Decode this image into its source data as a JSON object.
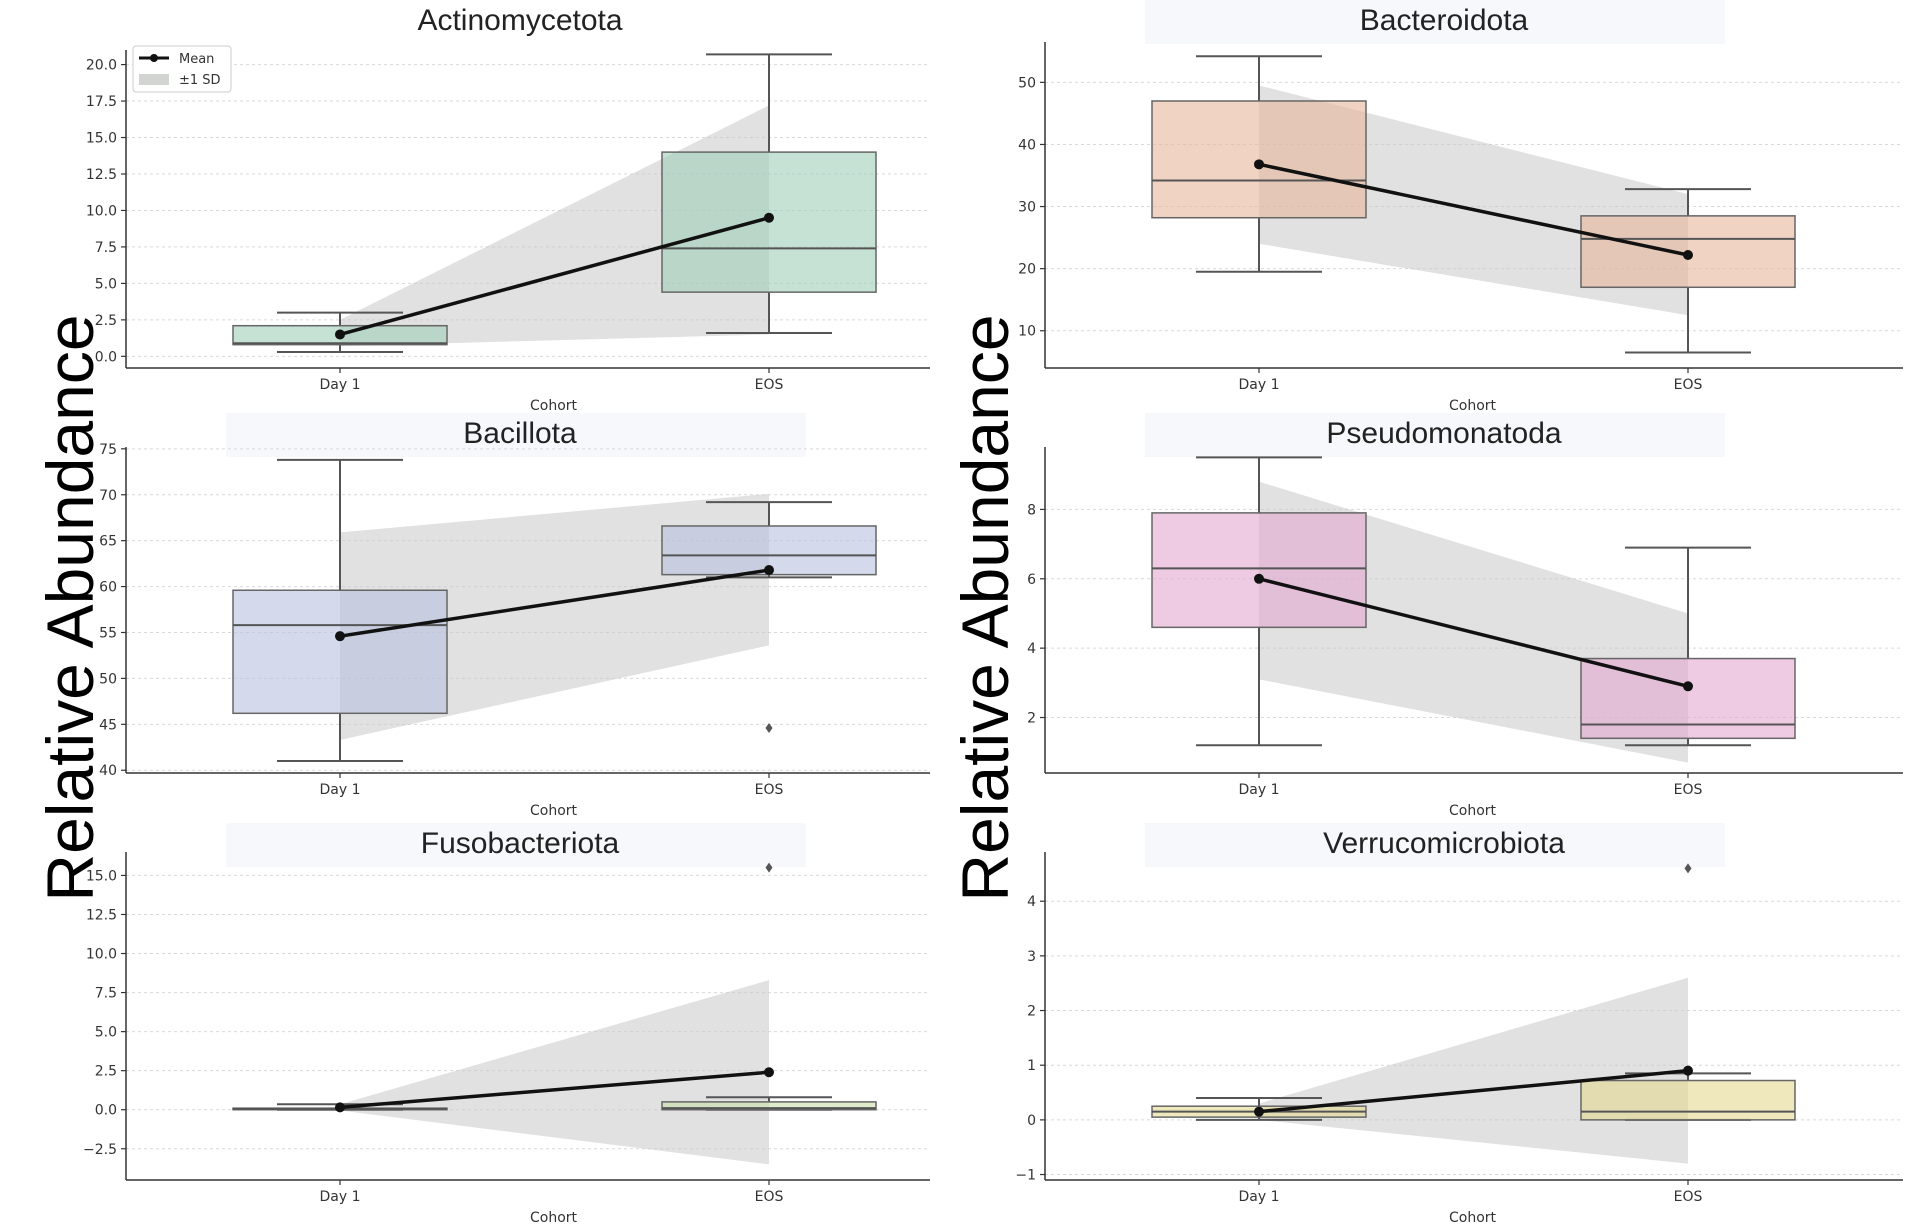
{
  "ylabel": "Relative Abundance",
  "legend": {
    "mean_label": "Mean",
    "sd_label": "±1 SD"
  },
  "chart_data": [
    {
      "type": "box",
      "title": "Actinomycetota",
      "categories": [
        "Day 1",
        "EOS"
      ],
      "xlabel": "Cohort",
      "ylim": [
        -0.8,
        21.0
      ],
      "yticks": [
        0.0,
        2.5,
        5.0,
        7.5,
        10.0,
        12.5,
        15.0,
        17.5,
        20.0
      ],
      "ytick_labels": [
        "0.0",
        "2.5",
        "5.0",
        "7.5",
        "10.0",
        "12.5",
        "15.0",
        "17.5",
        "20.0"
      ],
      "boxes": [
        {
          "whislo": 0.3,
          "q1": 0.8,
          "med": 0.9,
          "q3": 2.1,
          "whishi": 3.0,
          "fliers": []
        },
        {
          "whislo": 1.6,
          "q1": 4.4,
          "med": 7.4,
          "q3": 14.0,
          "whishi": 20.7,
          "fliers": []
        }
      ],
      "mean": [
        1.5,
        9.5
      ],
      "sd_band": {
        "lower": [
          0.7,
          1.5
        ],
        "upper": [
          2.5,
          17.2
        ]
      },
      "box_color": "#9fcfb9"
    },
    {
      "type": "box",
      "title": "Bacteroidota",
      "categories": [
        "Day 1",
        "EOS"
      ],
      "xlabel": "Cohort",
      "ylim": [
        4.0,
        56.5
      ],
      "yticks": [
        10,
        20,
        30,
        40,
        50
      ],
      "ytick_labels": [
        "10",
        "20",
        "30",
        "40",
        "50"
      ],
      "boxes": [
        {
          "whislo": 19.5,
          "q1": 28.2,
          "med": 34.2,
          "q3": 47.0,
          "whishi": 54.2,
          "fliers": []
        },
        {
          "whislo": 6.5,
          "q1": 17.0,
          "med": 24.8,
          "q3": 28.5,
          "whishi": 32.8,
          "fliers": []
        }
      ],
      "mean": [
        36.8,
        22.2
      ],
      "sd_band": {
        "lower": [
          24.0,
          12.5
        ],
        "upper": [
          49.5,
          32.0
        ]
      },
      "box_color": "#e8b59b"
    },
    {
      "type": "box",
      "title": "Bacillota",
      "categories": [
        "Day 1",
        "EOS"
      ],
      "xlabel": "Cohort",
      "ylim": [
        39.7,
        75.2
      ],
      "yticks": [
        40,
        45,
        50,
        55,
        60,
        65,
        70,
        75
      ],
      "ytick_labels": [
        "40",
        "45",
        "50",
        "55",
        "60",
        "65",
        "70",
        "75"
      ],
      "boxes": [
        {
          "whislo": 41.0,
          "q1": 46.2,
          "med": 55.8,
          "q3": 59.6,
          "whishi": 73.8,
          "fliers": []
        },
        {
          "whislo": 61.0,
          "q1": 61.3,
          "med": 63.4,
          "q3": 66.6,
          "whishi": 69.2,
          "fliers": [
            44.6
          ]
        }
      ],
      "mean": [
        54.6,
        61.8
      ],
      "sd_band": {
        "lower": [
          43.3,
          53.6
        ],
        "upper": [
          65.9,
          70.1
        ]
      },
      "box_color": "#b7c2e0"
    },
    {
      "type": "box",
      "title": "Pseudomonatoda",
      "categories": [
        "Day 1",
        "EOS"
      ],
      "xlabel": "Cohort",
      "ylim": [
        0.4,
        9.8
      ],
      "yticks": [
        2,
        4,
        6,
        8
      ],
      "ytick_labels": [
        "2",
        "4",
        "6",
        "8"
      ],
      "boxes": [
        {
          "whislo": 1.2,
          "q1": 4.6,
          "med": 6.3,
          "q3": 7.9,
          "whishi": 9.5,
          "fliers": []
        },
        {
          "whislo": 1.2,
          "q1": 1.4,
          "med": 1.8,
          "q3": 3.7,
          "whishi": 6.9,
          "fliers": []
        }
      ],
      "mean": [
        6.0,
        2.9
      ],
      "sd_band": {
        "lower": [
          3.1,
          0.7
        ],
        "upper": [
          8.8,
          5.0
        ]
      },
      "box_color": "#e2a8d0"
    },
    {
      "type": "box",
      "title": "Fusobacteriota",
      "categories": [
        "Day 1",
        "EOS"
      ],
      "xlabel": "Cohort",
      "ylim": [
        -4.5,
        16.5
      ],
      "yticks": [
        -2.5,
        0.0,
        2.5,
        5.0,
        7.5,
        10.0,
        12.5,
        15.0
      ],
      "ytick_labels": [
        "−2.5",
        "0.0",
        "2.5",
        "5.0",
        "7.5",
        "10.0",
        "12.5",
        "15.0"
      ],
      "boxes": [
        {
          "whislo": 0.0,
          "q1": 0.0,
          "med": 0.05,
          "q3": 0.1,
          "whishi": 0.35,
          "fliers": []
        },
        {
          "whislo": 0.0,
          "q1": 0.0,
          "med": 0.1,
          "q3": 0.5,
          "whishi": 0.8,
          "fliers": [
            15.5
          ]
        }
      ],
      "mean": [
        0.15,
        2.4
      ],
      "sd_band": {
        "lower": [
          -0.05,
          -3.5
        ],
        "upper": [
          0.35,
          8.3
        ]
      },
      "box_color": "#c9e0a8"
    },
    {
      "type": "box",
      "title": "Verrucomicrobiota",
      "categories": [
        "Day 1",
        "EOS"
      ],
      "xlabel": "Cohort",
      "ylim": [
        -1.1,
        4.9
      ],
      "yticks": [
        -1,
        0,
        1,
        2,
        3,
        4
      ],
      "ytick_labels": [
        "−1",
        "0",
        "1",
        "2",
        "3",
        "4"
      ],
      "boxes": [
        {
          "whislo": 0.0,
          "q1": 0.05,
          "med": 0.15,
          "q3": 0.25,
          "whishi": 0.4,
          "fliers": []
        },
        {
          "whislo": 0.0,
          "q1": 0.0,
          "med": 0.15,
          "q3": 0.72,
          "whishi": 0.85,
          "fliers": [
            4.6
          ]
        }
      ],
      "mean": [
        0.15,
        0.9
      ],
      "sd_band": {
        "lower": [
          0.0,
          -0.8
        ],
        "upper": [
          0.3,
          2.6
        ]
      },
      "box_color": "#e2d88f"
    }
  ]
}
